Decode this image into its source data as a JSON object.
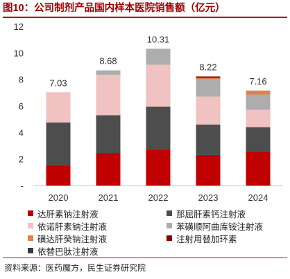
{
  "title": "图10：公司制剂产品国内样本医院销售额（亿元）",
  "source": "资料来源：医药魔方，民生证券研究院",
  "chart_data": {
    "type": "bar",
    "stacked": true,
    "categories": [
      "2020",
      "2021",
      "2022",
      "2023",
      "2024"
    ],
    "totals": [
      "7.03",
      "8.68",
      "10.31",
      "8.22",
      "7.16"
    ],
    "ylim": [
      0,
      12
    ],
    "yticks": [
      "-",
      "2",
      "4",
      "6",
      "8",
      "10",
      "12"
    ],
    "grid": false,
    "legend_position": "bottom",
    "series": [
      {
        "name": "达肝素钠注射液",
        "color": "#c00000",
        "values": [
          1.55,
          2.45,
          2.75,
          2.3,
          2.6
        ]
      },
      {
        "name": "那屈肝素钙注射液",
        "color": "#4d4d4d",
        "values": [
          3.2,
          2.85,
          3.2,
          2.3,
          1.8
        ]
      },
      {
        "name": "依诺肝素钠注射液",
        "color": "#f0c2c2",
        "values": [
          2.28,
          3.05,
          3.15,
          2.1,
          1.3
        ]
      },
      {
        "name": "苯磺顺阿曲库铵注射液",
        "color": "#adadad",
        "values": [
          0,
          0.33,
          1.21,
          1.3,
          1.16
        ]
      },
      {
        "name": "磺达肝癸钠注射液",
        "color": "#e0824a",
        "values": [
          0,
          0,
          0,
          0.12,
          0.3
        ]
      },
      {
        "name": "注射用替加环素",
        "color": "#8b0000",
        "values": [
          0,
          0,
          0,
          0.1,
          0
        ]
      },
      {
        "name": "依替巴肽注射液",
        "color": "#3a3a3a",
        "values": [
          0,
          0,
          0,
          0,
          0
        ]
      }
    ]
  }
}
